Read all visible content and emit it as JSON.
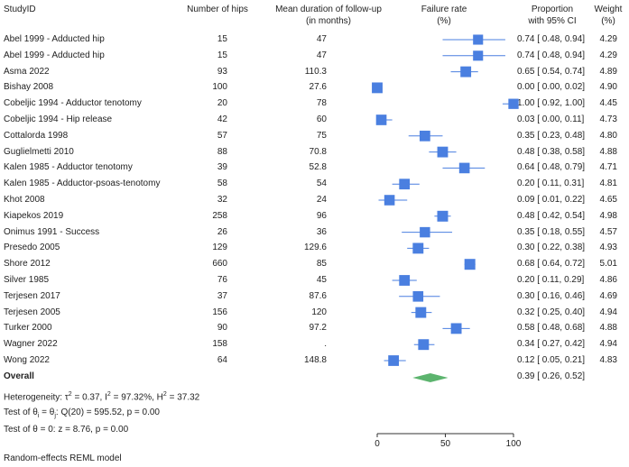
{
  "headers": {
    "study": "StudyID",
    "hips": "Number of hips",
    "followup_1": "Mean duration of follow-up",
    "followup_2": "(in months)",
    "failure_1": "Failure rate",
    "failure_2": "(%)",
    "prop_1": "Proportion",
    "prop_2": "with 95% CI",
    "weight_1": "Weight",
    "weight_2": "(%)"
  },
  "overall": {
    "label": "Overall",
    "ci": "0.39 [ 0.26, 0.52]",
    "estimate": 39,
    "lower": 26,
    "upper": 52
  },
  "heterogeneity": {
    "prefix": "Heterogeneity: τ",
    "tau_sup": "2",
    "mid1": " = 0.37, I",
    "i_sup": "2",
    "mid2": " = 97.32%, H",
    "h_sup": "2",
    "end": " = 37.32"
  },
  "test_theta_i": {
    "prefix": "Test of θ",
    "sub_i": "i",
    "mid": " = θ",
    "sub_j": "j",
    "end": ": Q(20) = 595.52, p = 0.00"
  },
  "test_theta_0": "Test of θ = 0: z = 8.76, p = 0.00",
  "model_note": "Random-effects REML model",
  "chart_data": {
    "type": "forest",
    "xlabel": "",
    "xlim": [
      0,
      100
    ],
    "xticks": [
      0,
      50,
      100
    ],
    "xtick_labels": [
      "0",
      "50",
      "100"
    ],
    "marker_color": "#4a7fe0",
    "overall_color": "#5cb46e",
    "studies": [
      {
        "name": "Abel 1999 - Adducted hip",
        "hips": "15",
        "followup": "47",
        "estimate": 74,
        "lower": 48,
        "upper": 94,
        "ci": "0.74 [ 0.48, 0.94]",
        "weight": "4.29"
      },
      {
        "name": "Abel 1999 - Adducted hip",
        "hips": "15",
        "followup": "47",
        "estimate": 74,
        "lower": 48,
        "upper": 94,
        "ci": "0.74 [ 0.48, 0.94]",
        "weight": "4.29"
      },
      {
        "name": "Asma 2022",
        "hips": "93",
        "followup": "110.3",
        "estimate": 65,
        "lower": 54,
        "upper": 74,
        "ci": "0.65 [ 0.54, 0.74]",
        "weight": "4.89"
      },
      {
        "name": "Bishay 2008",
        "hips": "100",
        "followup": "27.6",
        "estimate": 0,
        "lower": 0,
        "upper": 2,
        "ci": "0.00 [ 0.00, 0.02]",
        "weight": "4.90"
      },
      {
        "name": "Cobeljic 1994 - Adductor tenotomy",
        "hips": "20",
        "followup": "78",
        "estimate": 100,
        "lower": 92,
        "upper": 100,
        "ci": "1.00 [ 0.92, 1.00]",
        "weight": "4.45"
      },
      {
        "name": "Cobeljic 1994 - Hip release",
        "hips": "42",
        "followup": "60",
        "estimate": 3,
        "lower": 0,
        "upper": 11,
        "ci": "0.03 [ 0.00, 0.11]",
        "weight": "4.73"
      },
      {
        "name": "Cottalorda 1998",
        "hips": "57",
        "followup": "75",
        "estimate": 35,
        "lower": 23,
        "upper": 48,
        "ci": "0.35 [ 0.23, 0.48]",
        "weight": "4.80"
      },
      {
        "name": "Guglielmetti 2010",
        "hips": "88",
        "followup": "70.8",
        "estimate": 48,
        "lower": 38,
        "upper": 58,
        "ci": "0.48 [ 0.38, 0.58]",
        "weight": "4.88"
      },
      {
        "name": "Kalen 1985 - Adductor tenotomy",
        "hips": "39",
        "followup": "52.8",
        "estimate": 64,
        "lower": 48,
        "upper": 79,
        "ci": "0.64 [ 0.48, 0.79]",
        "weight": "4.71"
      },
      {
        "name": "Kalen 1985 - Adductor-psoas-tenotomy",
        "hips": "58",
        "followup": "54",
        "estimate": 20,
        "lower": 11,
        "upper": 31,
        "ci": "0.20 [ 0.11, 0.31]",
        "weight": "4.81"
      },
      {
        "name": "Khot 2008",
        "hips": "32",
        "followup": "24",
        "estimate": 9,
        "lower": 1,
        "upper": 22,
        "ci": "0.09 [ 0.01, 0.22]",
        "weight": "4.65"
      },
      {
        "name": "Kiapekos 2019",
        "hips": "258",
        "followup": "96",
        "estimate": 48,
        "lower": 42,
        "upper": 54,
        "ci": "0.48 [ 0.42, 0.54]",
        "weight": "4.98"
      },
      {
        "name": "Onimus 1991 - Success",
        "hips": "26",
        "followup": "36",
        "estimate": 35,
        "lower": 18,
        "upper": 55,
        "ci": "0.35 [ 0.18, 0.55]",
        "weight": "4.57"
      },
      {
        "name": "Presedo 2005",
        "hips": "129",
        "followup": "129.6",
        "estimate": 30,
        "lower": 22,
        "upper": 38,
        "ci": "0.30 [ 0.22, 0.38]",
        "weight": "4.93"
      },
      {
        "name": "Shore 2012",
        "hips": "660",
        "followup": "85",
        "estimate": 68,
        "lower": 64,
        "upper": 72,
        "ci": "0.68 [ 0.64, 0.72]",
        "weight": "5.01"
      },
      {
        "name": "Silver 1985",
        "hips": "76",
        "followup": "45",
        "estimate": 20,
        "lower": 11,
        "upper": 29,
        "ci": "0.20 [ 0.11, 0.29]",
        "weight": "4.86"
      },
      {
        "name": "Terjesen 2017",
        "hips": "37",
        "followup": "87.6",
        "estimate": 30,
        "lower": 16,
        "upper": 46,
        "ci": "0.30 [ 0.16, 0.46]",
        "weight": "4.69"
      },
      {
        "name": "Terjesen 2005",
        "hips": "156",
        "followup": "120",
        "estimate": 32,
        "lower": 25,
        "upper": 40,
        "ci": "0.32 [ 0.25, 0.40]",
        "weight": "4.94"
      },
      {
        "name": "Turker 2000",
        "hips": "90",
        "followup": "97.2",
        "estimate": 58,
        "lower": 48,
        "upper": 68,
        "ci": "0.58 [ 0.48, 0.68]",
        "weight": "4.88"
      },
      {
        "name": "Wagner 2022",
        "hips": "158",
        "followup": ".",
        "estimate": 34,
        "lower": 27,
        "upper": 42,
        "ci": "0.34 [ 0.27, 0.42]",
        "weight": "4.94"
      },
      {
        "name": "Wong 2022",
        "hips": "64",
        "followup": "148.8",
        "estimate": 12,
        "lower": 5,
        "upper": 21,
        "ci": "0.12 [ 0.05, 0.21]",
        "weight": "4.83"
      }
    ]
  }
}
